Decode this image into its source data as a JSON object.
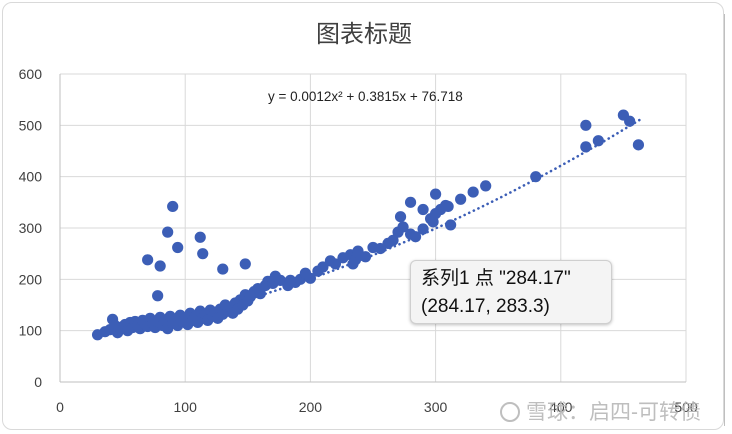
{
  "chart_data": {
    "type": "scatter",
    "title": "图表标题",
    "xlabel": "",
    "ylabel": "",
    "xlim": [
      0,
      500
    ],
    "ylim": [
      0,
      600
    ],
    "x_ticks": [
      0,
      100,
      200,
      300,
      400,
      500
    ],
    "y_ticks": [
      0,
      100,
      200,
      300,
      400,
      500,
      600
    ],
    "grid": true,
    "marker_color": "#3c5eb6",
    "trendline": {
      "type": "polynomial",
      "order": 2,
      "equation": "y = 0.0012x² + 0.3815x + 76.718",
      "coefficients": [
        0.0012,
        0.3815,
        76.718
      ],
      "x_range": [
        30,
        465
      ],
      "style": "dotted"
    },
    "series": [
      {
        "points": [
          [
            30,
            92
          ],
          [
            36,
            98
          ],
          [
            40,
            102
          ],
          [
            42,
            122
          ],
          [
            44,
            110
          ],
          [
            46,
            96
          ],
          [
            48,
            104
          ],
          [
            50,
            108
          ],
          [
            52,
            112
          ],
          [
            54,
            100
          ],
          [
            56,
            116
          ],
          [
            58,
            106
          ],
          [
            60,
            118
          ],
          [
            62,
            110
          ],
          [
            64,
            104
          ],
          [
            66,
            120
          ],
          [
            68,
            112
          ],
          [
            70,
            108
          ],
          [
            72,
            124
          ],
          [
            74,
            114
          ],
          [
            76,
            106
          ],
          [
            78,
            118
          ],
          [
            80,
            126
          ],
          [
            82,
            110
          ],
          [
            84,
            120
          ],
          [
            86,
            104
          ],
          [
            88,
            128
          ],
          [
            90,
            114
          ],
          [
            92,
            122
          ],
          [
            94,
            110
          ],
          [
            96,
            130
          ],
          [
            98,
            118
          ],
          [
            100,
            124
          ],
          [
            102,
            112
          ],
          [
            104,
            134
          ],
          [
            106,
            120
          ],
          [
            108,
            128
          ],
          [
            110,
            116
          ],
          [
            112,
            138
          ],
          [
            114,
            124
          ],
          [
            116,
            132
          ],
          [
            118,
            120
          ],
          [
            120,
            140
          ],
          [
            122,
            128
          ],
          [
            124,
            136
          ],
          [
            126,
            124
          ],
          [
            128,
            142
          ],
          [
            130,
            132
          ],
          [
            132,
            150
          ],
          [
            134,
            138
          ],
          [
            136,
            146
          ],
          [
            138,
            134
          ],
          [
            140,
            154
          ],
          [
            142,
            142
          ],
          [
            144,
            160
          ],
          [
            146,
            150
          ],
          [
            148,
            170
          ],
          [
            150,
            158
          ],
          [
            152,
            166
          ],
          [
            155,
            176
          ],
          [
            158,
            182
          ],
          [
            160,
            172
          ],
          [
            164,
            188
          ],
          [
            166,
            196
          ],
          [
            170,
            192
          ],
          [
            172,
            206
          ],
          [
            176,
            198
          ],
          [
            182,
            188
          ],
          [
            188,
            194
          ],
          [
            192,
            200
          ],
          [
            196,
            210
          ],
          [
            200,
            202
          ],
          [
            206,
            216
          ],
          [
            210,
            224
          ],
          [
            216,
            236
          ],
          [
            220,
            230
          ],
          [
            226,
            242
          ],
          [
            232,
            248
          ],
          [
            236,
            238
          ],
          [
            238,
            252
          ],
          [
            244,
            244
          ],
          [
            250,
            262
          ],
          [
            262,
            270
          ],
          [
            266,
            276
          ],
          [
            270,
            292
          ],
          [
            274,
            302
          ],
          [
            280,
            288
          ],
          [
            284,
            283
          ],
          [
            290,
            298
          ],
          [
            296,
            318
          ],
          [
            300,
            328
          ],
          [
            304,
            336
          ],
          [
            310,
            342
          ],
          [
            320,
            356
          ],
          [
            330,
            370
          ],
          [
            340,
            382
          ],
          [
            280,
            350
          ],
          [
            300,
            366
          ],
          [
            380,
            400
          ],
          [
            420,
            458
          ],
          [
            420,
            500
          ],
          [
            430,
            470
          ],
          [
            450,
            520
          ],
          [
            455,
            508
          ],
          [
            462,
            462
          ],
          [
            70,
            238
          ],
          [
            78,
            168
          ],
          [
            80,
            226
          ],
          [
            86,
            292
          ],
          [
            90,
            342
          ],
          [
            94,
            262
          ],
          [
            112,
            282
          ],
          [
            114,
            250
          ],
          [
            130,
            220
          ],
          [
            148,
            230
          ],
          [
            234,
            230
          ],
          [
            238,
            255
          ],
          [
            272,
            322
          ],
          [
            290,
            336
          ],
          [
            298,
            312
          ],
          [
            308,
            344
          ],
          [
            312,
            306
          ],
          [
            256,
            260
          ],
          [
            196,
            212
          ],
          [
            184,
            198
          ]
        ]
      }
    ],
    "tooltip": {
      "line1": "系列1 点 \"284.17\"",
      "line2": "(284.17, 283.3)"
    }
  },
  "watermark": "雪球：启四-可转债"
}
